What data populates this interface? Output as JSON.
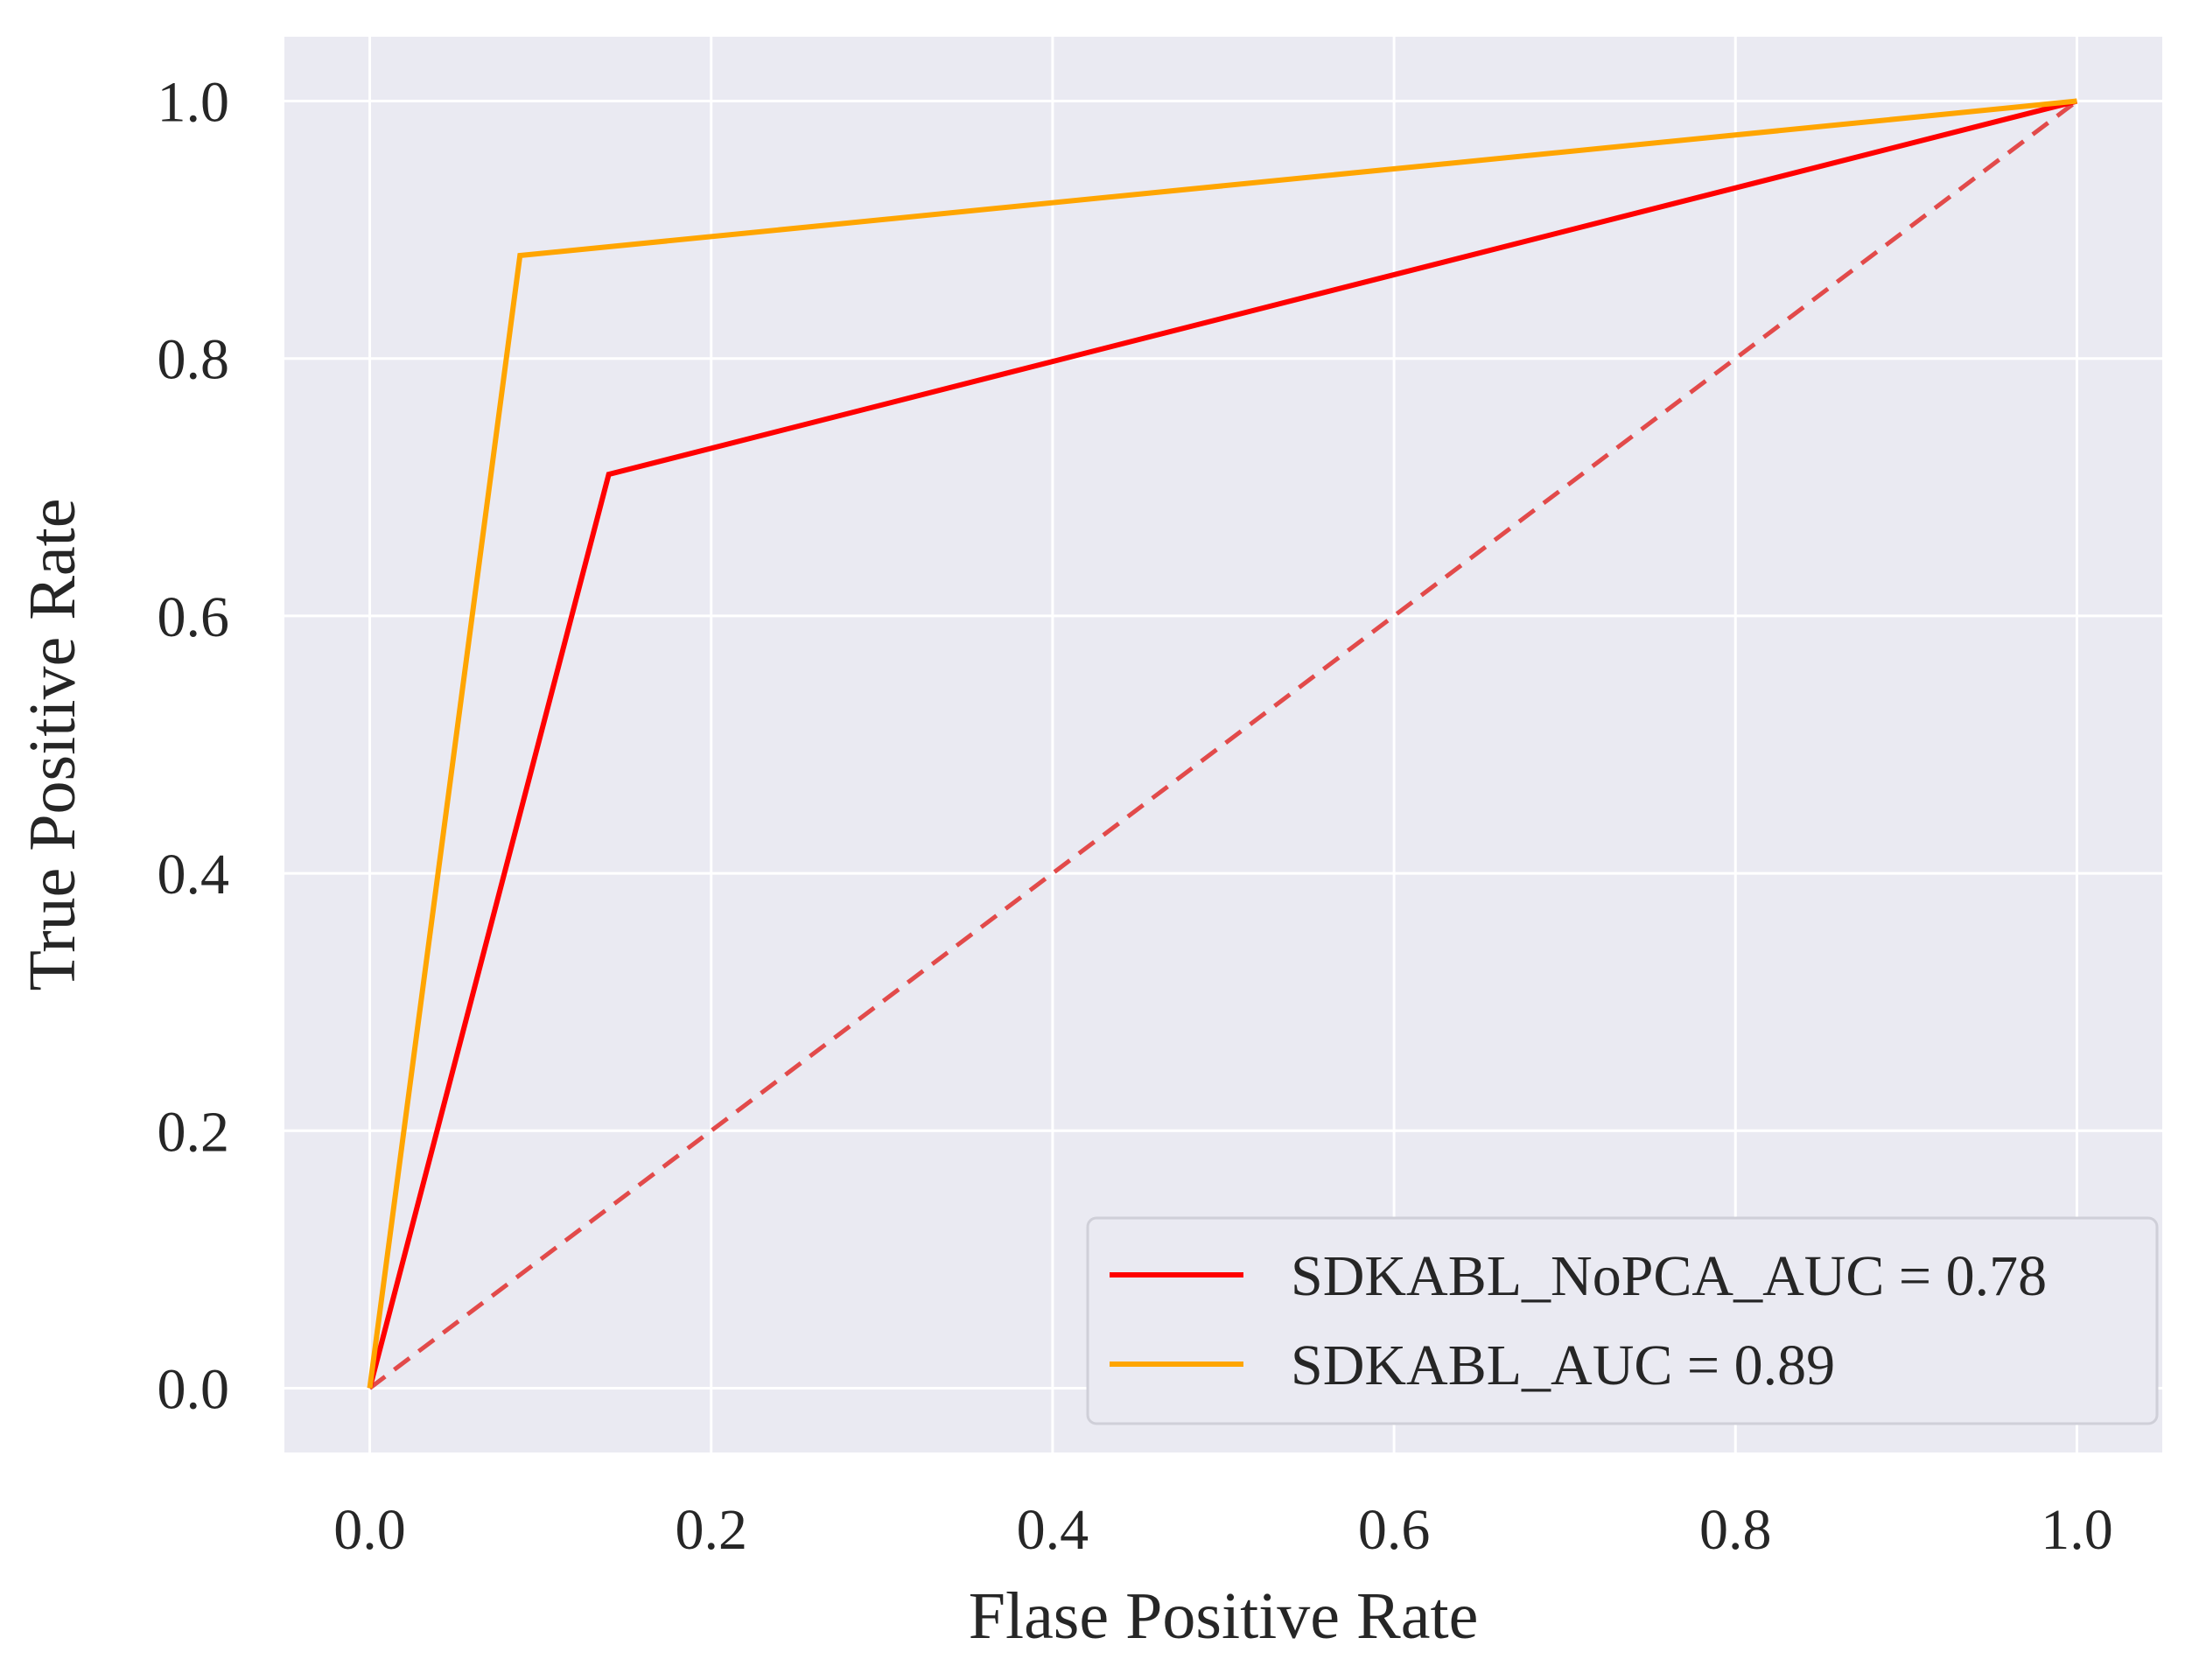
{
  "chart_data": {
    "type": "line",
    "title": "",
    "xlabel": "Flase Positive Rate",
    "ylabel": "True Positive Rate",
    "xlim": [
      -0.05,
      1.05
    ],
    "ylim": [
      -0.05,
      1.05
    ],
    "xticks": [
      0.0,
      0.2,
      0.4,
      0.6,
      0.8,
      1.0
    ],
    "xtick_labels": [
      "0.0",
      "0.2",
      "0.4",
      "0.6",
      "0.8",
      "1.0"
    ],
    "yticks": [
      0.0,
      0.2,
      0.4,
      0.6,
      0.8,
      1.0
    ],
    "ytick_labels": [
      "0.0",
      "0.2",
      "0.4",
      "0.6",
      "0.8",
      "1.0"
    ],
    "grid": true,
    "legend_position": "lower-right",
    "series": [
      {
        "name": "SDKABL_NoPCA_AUC = 0.78",
        "color": "#ff0000",
        "style": "solid",
        "x": [
          0.0,
          0.14,
          1.0
        ],
        "y": [
          0.0,
          0.71,
          1.0
        ]
      },
      {
        "name": "SDKABL_AUC = 0.89",
        "color": "#ffa500",
        "style": "solid",
        "x": [
          0.0,
          0.088,
          1.0
        ],
        "y": [
          0.0,
          0.88,
          1.0
        ]
      }
    ],
    "reference_line": {
      "name": "chance-diagonal",
      "color": "#e24a4a",
      "style": "dashed",
      "x": [
        0.0,
        1.0
      ],
      "y": [
        0.0,
        1.0
      ]
    },
    "colors": {
      "plot_background": "#eaeaf2",
      "grid": "#ffffff",
      "legend_background": "#eaeaf2",
      "legend_border": "#cfcfd8",
      "text": "#262626"
    }
  }
}
